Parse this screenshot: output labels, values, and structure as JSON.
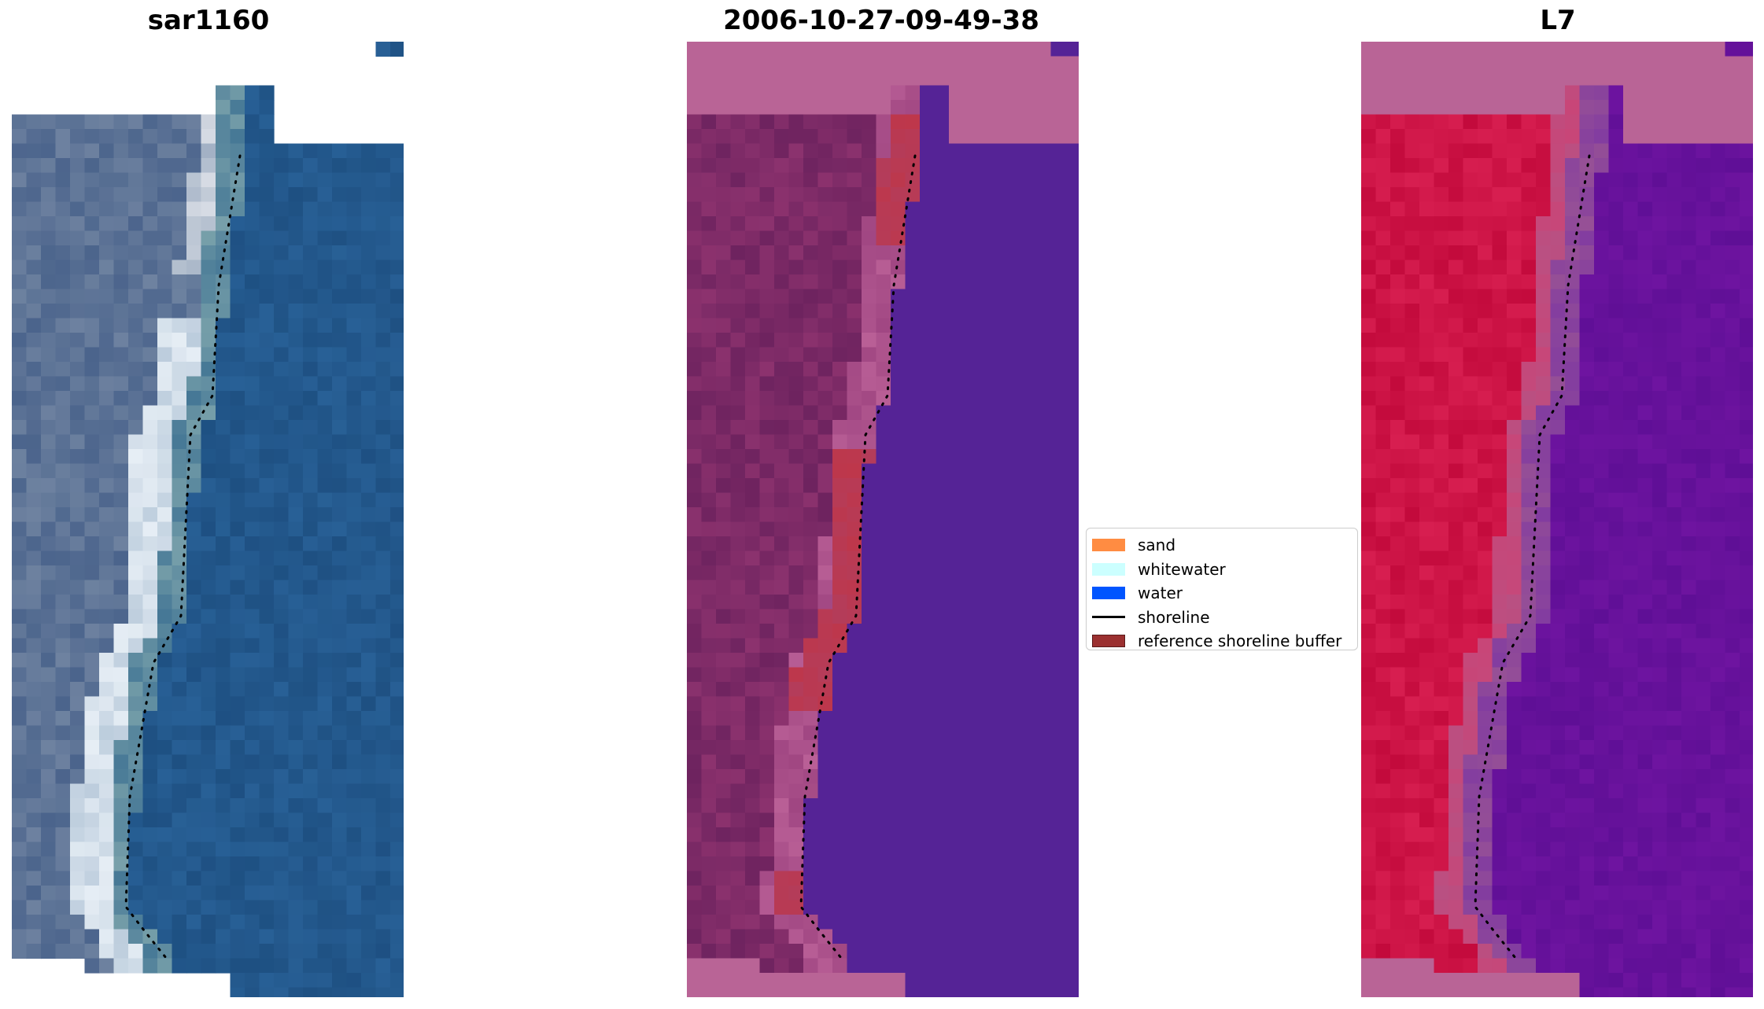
{
  "figure": {
    "panels": [
      {
        "title": "sar1160",
        "variant": "rgb"
      },
      {
        "title": "2006-10-27-09-49-38",
        "variant": "classified"
      },
      {
        "title": "L7",
        "variant": "index"
      }
    ],
    "legend": {
      "items": [
        {
          "label": "sand",
          "color": "#ff8c42",
          "kind": "patch"
        },
        {
          "label": "whitewater",
          "color": "#ccffff",
          "kind": "patch"
        },
        {
          "label": "water",
          "color": "#0055ff",
          "kind": "patch"
        },
        {
          "label": "shoreline",
          "color": "#000000",
          "kind": "line"
        },
        {
          "label": "reference shoreline buffer",
          "color": "#9b3030",
          "kind": "patch"
        }
      ]
    }
  }
}
